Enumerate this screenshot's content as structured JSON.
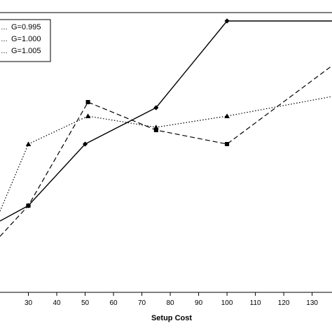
{
  "chart_data": {
    "type": "line",
    "xlabel": "Setup Cost",
    "ylabel": "",
    "title": "",
    "xlim": [
      20,
      137
    ],
    "x_ticks": [
      "30",
      "40",
      "50",
      "60",
      "70",
      "80",
      "90",
      "100",
      "110",
      "120",
      "130"
    ],
    "x_tick_values": [
      30,
      40,
      50,
      60,
      70,
      80,
      90,
      100,
      110,
      120,
      130
    ],
    "ylim": [
      0,
      100
    ],
    "grid": false,
    "legend_position": "top-left",
    "series": [
      {
        "name": "G=0.995",
        "legend_prefix": "…",
        "line_style": "solid",
        "marker": "diamond",
        "x": [
          20,
          30,
          50,
          75,
          100,
          137
        ],
        "y": [
          25.5,
          31,
          53,
          66,
          97,
          97
        ]
      },
      {
        "name": "G=1.000",
        "legend_prefix": "…",
        "line_style": "dashed",
        "marker": "square",
        "x": [
          20,
          30,
          51,
          75,
          100,
          137
        ],
        "y": [
          20,
          31,
          68,
          58,
          53,
          81
        ]
      },
      {
        "name": "G=1.005",
        "legend_prefix": "…",
        "line_style": "dotted",
        "marker": "triangle",
        "x": [
          20,
          30,
          51,
          75,
          100,
          137
        ],
        "y": [
          29,
          53,
          63,
          59,
          63,
          70
        ]
      }
    ]
  }
}
